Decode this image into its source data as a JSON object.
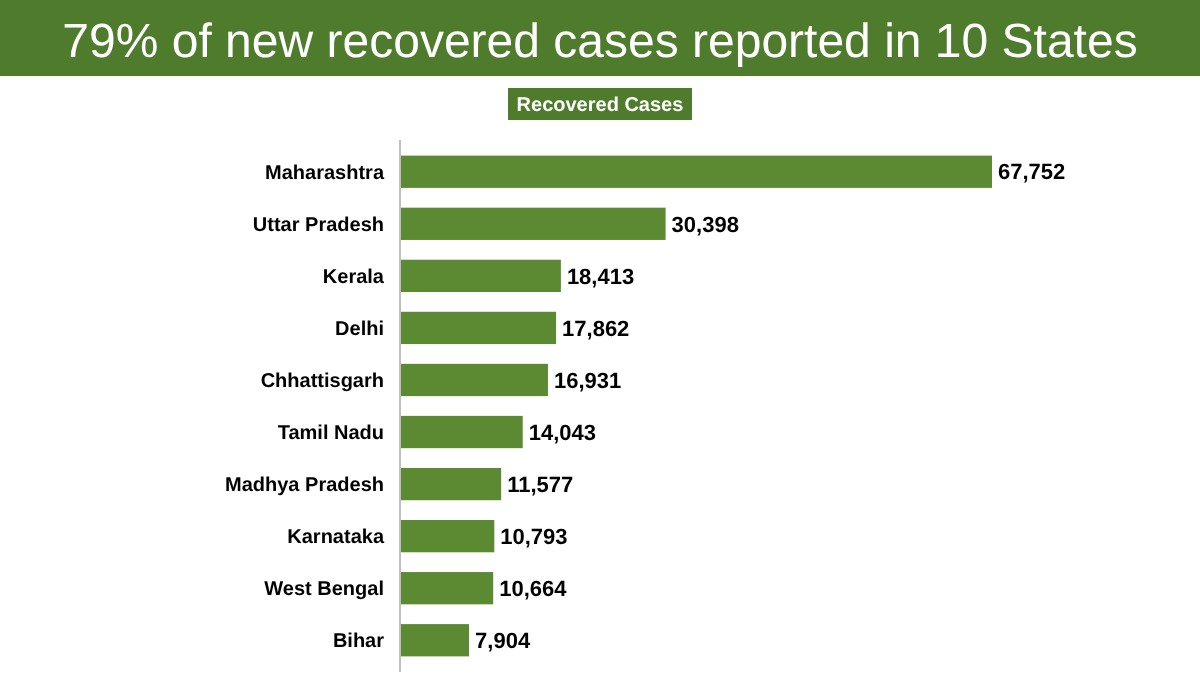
{
  "chart_data": {
    "type": "bar",
    "orientation": "horizontal",
    "title": "79% of new recovered cases reported in 10 States",
    "subtitle": "Recovered Cases",
    "categories": [
      "Maharashtra",
      "Uttar Pradesh",
      "Kerala",
      "Delhi",
      "Chhattisgarh",
      "Tamil Nadu",
      "Madhya Pradesh",
      "Karnataka",
      "West Bengal",
      "Bihar"
    ],
    "values": [
      67752,
      30398,
      18413,
      17862,
      16931,
      14043,
      11577,
      10793,
      10664,
      7904
    ],
    "value_labels": [
      "67,752",
      "30,398",
      "18,413",
      "17,862",
      "16,931",
      "14,043",
      "11,577",
      "10,793",
      "10,664",
      "7,904"
    ],
    "color": "#5b8a32"
  }
}
